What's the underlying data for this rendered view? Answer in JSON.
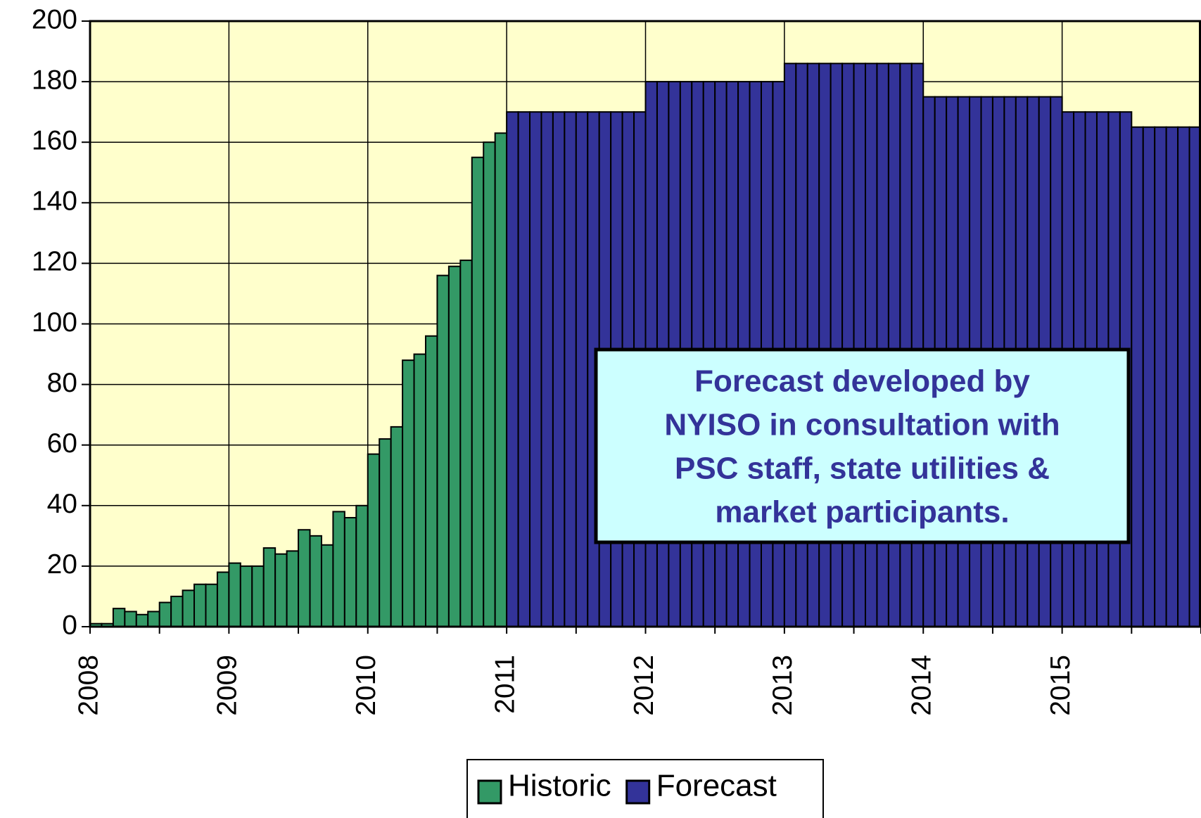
{
  "chart_data": {
    "type": "bar",
    "categories": [
      "2008",
      null,
      null,
      null,
      null,
      null,
      null,
      null,
      null,
      null,
      null,
      null,
      "2009",
      null,
      null,
      null,
      null,
      null,
      null,
      null,
      null,
      null,
      null,
      null,
      "2010",
      null,
      null,
      null,
      null,
      null,
      null,
      null,
      null,
      null,
      null,
      null,
      "2011",
      null,
      null,
      null,
      null,
      null,
      null,
      null,
      null,
      null,
      null,
      null,
      "2012",
      null,
      null,
      null,
      null,
      null,
      null,
      null,
      null,
      null,
      null,
      null,
      "2013",
      null,
      null,
      null,
      null,
      null,
      null,
      null,
      null,
      null,
      null,
      null,
      "2014",
      null,
      null,
      null,
      null,
      null,
      null,
      null,
      null,
      null,
      null,
      null,
      "2015",
      null,
      null,
      null,
      null,
      null,
      null,
      null,
      null,
      null,
      null,
      null
    ],
    "series": [
      {
        "name": "Historic",
        "color": "#339966",
        "values": [
          1,
          1,
          6,
          5,
          4,
          5,
          8,
          10,
          12,
          14,
          14,
          18,
          21,
          20,
          20,
          26,
          24,
          25,
          32,
          30,
          27,
          38,
          36,
          40,
          57,
          62,
          66,
          88,
          90,
          96,
          116,
          119,
          121,
          155,
          160,
          163,
          null,
          null,
          null,
          null,
          null,
          null,
          null,
          null,
          null,
          null,
          null,
          null,
          null,
          null,
          null,
          null,
          null,
          null,
          null,
          null,
          null,
          null,
          null,
          null,
          null,
          null,
          null,
          null,
          null,
          null,
          null,
          null,
          null,
          null,
          null,
          null,
          null,
          null,
          null,
          null,
          null,
          null,
          null,
          null,
          null,
          null,
          null,
          null,
          null,
          null,
          null,
          null,
          null,
          null,
          null,
          null,
          null,
          null,
          null,
          null
        ]
      },
      {
        "name": "Forecast",
        "color": "#333399",
        "values": [
          null,
          null,
          null,
          null,
          null,
          null,
          null,
          null,
          null,
          null,
          null,
          null,
          null,
          null,
          null,
          null,
          null,
          null,
          null,
          null,
          null,
          null,
          null,
          null,
          null,
          null,
          null,
          null,
          null,
          null,
          null,
          null,
          null,
          null,
          null,
          null,
          170,
          170,
          170,
          170,
          170,
          170,
          170,
          170,
          170,
          170,
          170,
          170,
          180,
          180,
          180,
          180,
          180,
          180,
          180,
          180,
          180,
          180,
          180,
          180,
          186,
          186,
          186,
          186,
          186,
          186,
          186,
          186,
          186,
          186,
          186,
          186,
          175,
          175,
          175,
          175,
          175,
          175,
          175,
          175,
          175,
          175,
          175,
          175,
          170,
          170,
          170,
          170,
          170,
          170,
          165,
          165,
          165,
          165,
          165,
          165
        ]
      }
    ],
    "ylim": [
      0,
      200
    ],
    "yticks": [
      0,
      20,
      40,
      60,
      80,
      100,
      120,
      140,
      160,
      180,
      200
    ],
    "grid": true,
    "legend": "bottom",
    "annotation": [
      "Forecast developed by",
      "NYISO in consultation with",
      "PSC staff, state utilities &",
      "market participants."
    ]
  }
}
